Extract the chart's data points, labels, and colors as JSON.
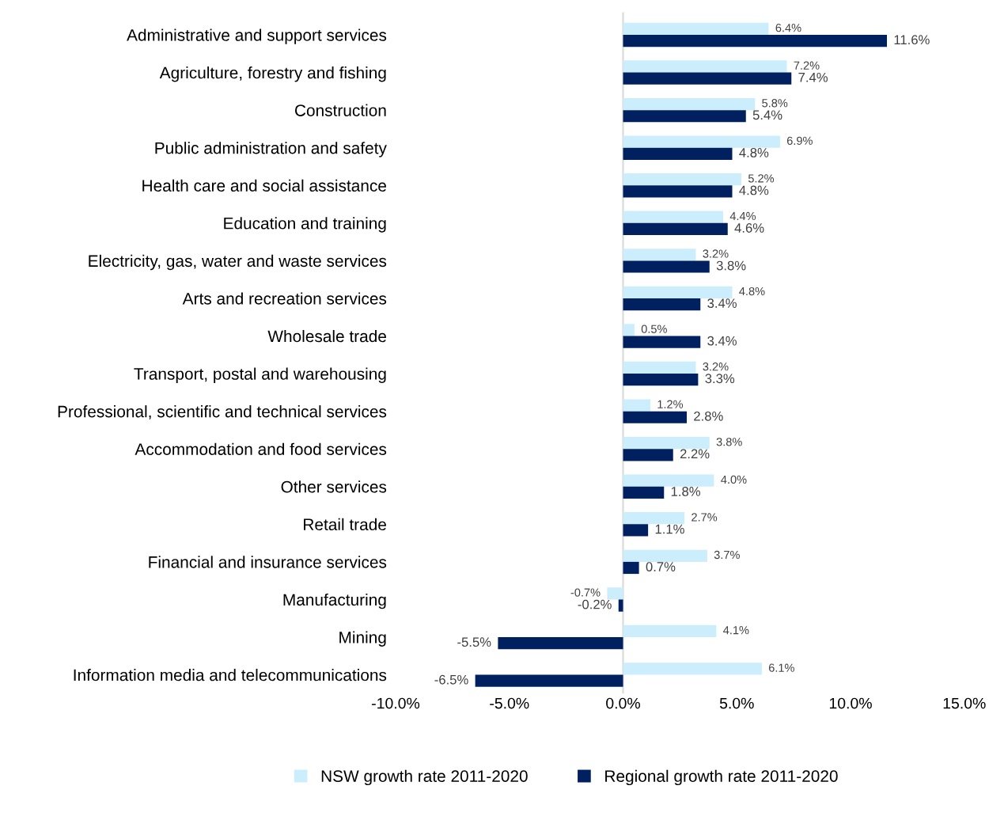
{
  "chart_data": {
    "type": "bar",
    "orientation": "horizontal",
    "categories": [
      "Administrative and support services",
      "Agriculture, forestry and fishing",
      "Construction",
      "Public administration and safety",
      "Health care and social assistance",
      "Education and training",
      "Electricity, gas, water and waste services",
      "Arts and recreation services",
      "Wholesale trade",
      "Transport, postal and warehousing",
      "Professional, scientific and technical services",
      "Accommodation and food services",
      "Other services",
      "Retail trade",
      "Financial and insurance services",
      "Manufacturing",
      "Mining",
      "Information media and telecommunications"
    ],
    "series": [
      {
        "name": "NSW growth rate 2011-2020",
        "color": "#cceefc",
        "values": [
          6.4,
          7.2,
          5.8,
          6.9,
          5.2,
          4.4,
          3.2,
          4.8,
          0.5,
          3.2,
          1.2,
          3.8,
          4.0,
          2.7,
          3.7,
          -0.7,
          4.1,
          6.1
        ],
        "value_labels": [
          "6.4%",
          "7.2%",
          "5.8%",
          "6.9%",
          "5.2%",
          "4.4%",
          "3.2%",
          "4.8%",
          "0.5%",
          "3.2%",
          "1.2%",
          "3.8%",
          "4.0%",
          "2.7%",
          "3.7%",
          "-0.7%",
          "4.1%",
          "6.1%"
        ]
      },
      {
        "name": "Regional growth rate 2011-2020",
        "color": "#002060",
        "values": [
          11.6,
          7.4,
          5.4,
          4.8,
          4.8,
          4.6,
          3.8,
          3.4,
          3.4,
          3.3,
          2.8,
          2.2,
          1.8,
          1.1,
          0.7,
          -0.2,
          -5.5,
          -6.5
        ],
        "value_labels": [
          "11.6%",
          "7.4%",
          "5.4%",
          "4.8%",
          "4.8%",
          "4.6%",
          "3.8%",
          "3.4%",
          "3.4%",
          "3.3%",
          "2.8%",
          "2.2%",
          "1.8%",
          "1.1%",
          "0.7%",
          "-0.2%",
          "-5.5%",
          "-6.5%"
        ]
      }
    ],
    "xlim": [
      -10,
      15
    ],
    "xticks": [
      {
        "value": -10,
        "label": "-10.0%"
      },
      {
        "value": -5,
        "label": "-5.0%"
      },
      {
        "value": 0,
        "label": "0.0%"
      },
      {
        "value": 5,
        "label": "5.0%"
      },
      {
        "value": 10,
        "label": "10.0%"
      },
      {
        "value": 15,
        "label": "15.0%"
      }
    ],
    "ref_lines": [
      {
        "axis": "x",
        "value": 0,
        "color": "#d9d9d9"
      }
    ],
    "grid": false,
    "legend": "bottom"
  }
}
